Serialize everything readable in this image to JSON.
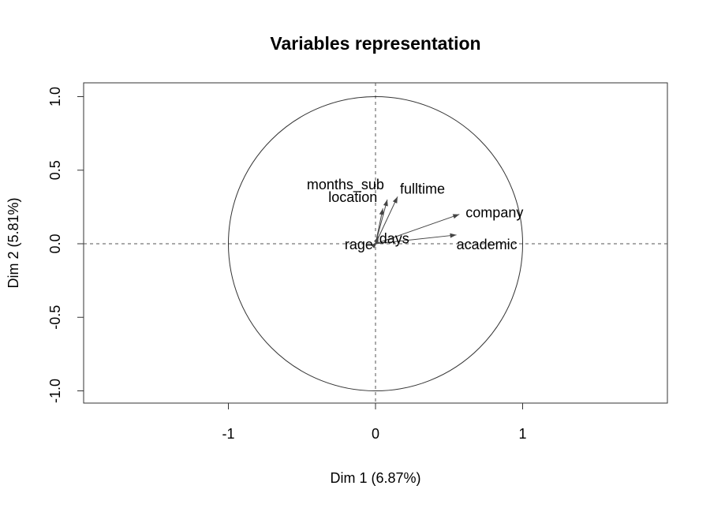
{
  "chart_data": {
    "type": "scatter",
    "title": "Variables representation",
    "xlabel": "Dim 1 (6.87%)",
    "ylabel": "Dim 2 (5.81%)",
    "xlim": [
      -1.98,
      1.98
    ],
    "ylim": [
      -1.08,
      1.08
    ],
    "xticks": [
      -1,
      0,
      1
    ],
    "xtick_labels": [
      "-1",
      "0",
      "1"
    ],
    "yticks": [
      -1.0,
      -0.5,
      0.0,
      0.5,
      1.0
    ],
    "ytick_labels": [
      "-1.0",
      "-0.5",
      "0.0",
      "0.5",
      "1.0"
    ],
    "unit_circle": true,
    "reference_lines": "dashed at x=0 and y=0",
    "grid": false,
    "points": [
      {
        "label": "months_sub",
        "x": 0.08,
        "y": 0.3
      },
      {
        "label": "location",
        "x": 0.05,
        "y": 0.24
      },
      {
        "label": "fulltime",
        "x": 0.15,
        "y": 0.32
      },
      {
        "label": "company",
        "x": 0.57,
        "y": 0.2
      },
      {
        "label": "academic",
        "x": 0.55,
        "y": 0.06
      },
      {
        "label": "days",
        "x": 0.02,
        "y": 0.05
      },
      {
        "label": "rage",
        "x": 0.01,
        "y": 0.01
      }
    ]
  }
}
